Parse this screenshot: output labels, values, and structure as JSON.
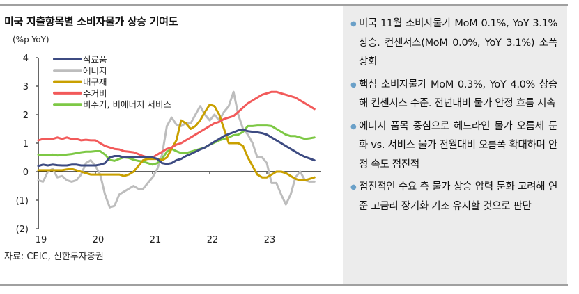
{
  "title": "미국 지출항목별 소비자물가 상승 기여도",
  "source": "자료: CEIC, 신한투자증권",
  "bullets": [
    "미국 11월 소비자물가 MoM 0.1%, YoY 3.1% 상승. 컨센서스(MoM 0.0%, YoY 3.1%) 소폭 상회",
    "핵심 소비자물가 MoM 0.3%, YoY 4.0% 상승해 컨센서스 수준. 전년대비 물가 안정 흐름 지속",
    "에너지 품목 중심으로 헤드라인 물가 오름세 둔화 vs. 서비스 물가 전월대비 오름폭 확대하며 안정 속도 점진적",
    "점진적인 수요 측 물가 상승 압력 둔화 고려해 연준 고금리 장기화 기조 유지할 것으로 판단"
  ],
  "chart_data": {
    "type": "line",
    "title": "미국 지출항목별 소비자물가 상승 기여도",
    "ylabel": "(%p YoY)",
    "ylim": [
      -2,
      4
    ],
    "yticks": [
      4,
      3,
      2,
      1,
      0,
      -1,
      -2
    ],
    "ytick_labels": [
      "4",
      "3",
      "2",
      "1",
      "0",
      "(1)",
      "(2)"
    ],
    "x_start": "2019-01",
    "x_end": "2023-11",
    "xtick_labels": [
      "19",
      "20",
      "21",
      "22",
      "23"
    ],
    "legend": "top-left",
    "series": [
      {
        "name": "식료품",
        "color": "#3d4b82",
        "values": [
          0.2,
          0.25,
          0.22,
          0.25,
          0.23,
          0.22,
          0.22,
          0.25,
          0.25,
          0.22,
          0.22,
          0.22,
          0.22,
          0.25,
          0.3,
          0.5,
          0.55,
          0.55,
          0.5,
          0.5,
          0.5,
          0.5,
          0.52,
          0.52,
          0.5,
          0.45,
          0.3,
          0.27,
          0.3,
          0.4,
          0.45,
          0.55,
          0.62,
          0.7,
          0.78,
          0.85,
          0.95,
          1.05,
          1.15,
          1.25,
          1.32,
          1.38,
          1.45,
          1.48,
          1.42,
          1.4,
          1.38,
          1.35,
          1.3,
          1.2,
          1.1,
          1.0,
          0.9,
          0.8,
          0.7,
          0.6,
          0.52,
          0.46,
          0.4
        ]
      },
      {
        "name": "에너지",
        "color": "#bdbdbd",
        "values": [
          -0.3,
          -0.35,
          0,
          0.1,
          -0.2,
          -0.15,
          -0.3,
          -0.35,
          -0.3,
          -0.1,
          0.3,
          0.4,
          0.2,
          -0.1,
          -0.8,
          -1.25,
          -1.2,
          -0.8,
          -0.7,
          -0.6,
          -0.5,
          -0.6,
          -0.6,
          -0.4,
          -0.2,
          0.1,
          0.6,
          1.6,
          1.9,
          1.65,
          1.6,
          1.7,
          1.7,
          2.0,
          2.3,
          2.0,
          1.8,
          2.0,
          1.8,
          2.1,
          2.3,
          2.8,
          2.0,
          1.5,
          1.3,
          1.0,
          0.5,
          0.5,
          0.3,
          -0.4,
          -0.4,
          -0.8,
          -1.15,
          -0.8,
          -0.2,
          0,
          -0.3,
          -0.35,
          -0.35
        ]
      },
      {
        "name": "내구재",
        "color": "#c9a000",
        "values": [
          0.05,
          0.05,
          0.05,
          0.05,
          0.05,
          0.05,
          0.08,
          0.1,
          0.05,
          0,
          -0.05,
          -0.1,
          -0.1,
          -0.1,
          -0.1,
          -0.1,
          -0.1,
          -0.1,
          -0.15,
          -0.1,
          0,
          0.2,
          0.4,
          0.45,
          0.45,
          0.45,
          0.4,
          0.5,
          0.8,
          1.1,
          1.8,
          1.7,
          1.5,
          1.6,
          1.8,
          2.1,
          2.35,
          2.3,
          2.0,
          1.5,
          1.0,
          1.0,
          1.0,
          0.9,
          0.5,
          0.2,
          -0.1,
          -0.2,
          -0.2,
          -0.1,
          0,
          0,
          -0.05,
          -0.15,
          -0.25,
          -0.3,
          -0.3,
          -0.25,
          -0.2
        ]
      },
      {
        "name": "주거비",
        "color": "#f25a5a",
        "values": [
          1.1,
          1.15,
          1.15,
          1.15,
          1.2,
          1.15,
          1.2,
          1.15,
          1.15,
          1.1,
          1.12,
          1.1,
          1.1,
          1.0,
          0.9,
          0.85,
          0.8,
          0.78,
          0.72,
          0.7,
          0.68,
          0.62,
          0.55,
          0.5,
          0.5,
          0.6,
          0.7,
          0.8,
          0.85,
          0.95,
          1.0,
          1.1,
          1.2,
          1.3,
          1.4,
          1.5,
          1.6,
          1.7,
          1.75,
          1.85,
          1.9,
          1.95,
          2.1,
          2.25,
          2.4,
          2.5,
          2.6,
          2.7,
          2.75,
          2.8,
          2.8,
          2.75,
          2.7,
          2.65,
          2.6,
          2.5,
          2.4,
          2.3,
          2.2
        ]
      },
      {
        "name": "비주거, 비에너지 서비스",
        "color": "#7dc845",
        "values": [
          0.6,
          0.58,
          0.58,
          0.6,
          0.57,
          0.58,
          0.6,
          0.62,
          0.65,
          0.68,
          0.7,
          0.7,
          0.72,
          0.72,
          0.6,
          0.42,
          0.38,
          0.45,
          0.5,
          0.48,
          0.42,
          0.38,
          0.35,
          0.3,
          0.25,
          0.3,
          0.45,
          0.7,
          0.8,
          0.72,
          0.65,
          0.65,
          0.7,
          0.75,
          0.8,
          0.85,
          0.95,
          1.02,
          1.1,
          1.15,
          1.2,
          1.28,
          1.3,
          1.4,
          1.6,
          1.6,
          1.62,
          1.62,
          1.62,
          1.6,
          1.5,
          1.4,
          1.3,
          1.25,
          1.25,
          1.2,
          1.15,
          1.17,
          1.2
        ]
      }
    ]
  }
}
